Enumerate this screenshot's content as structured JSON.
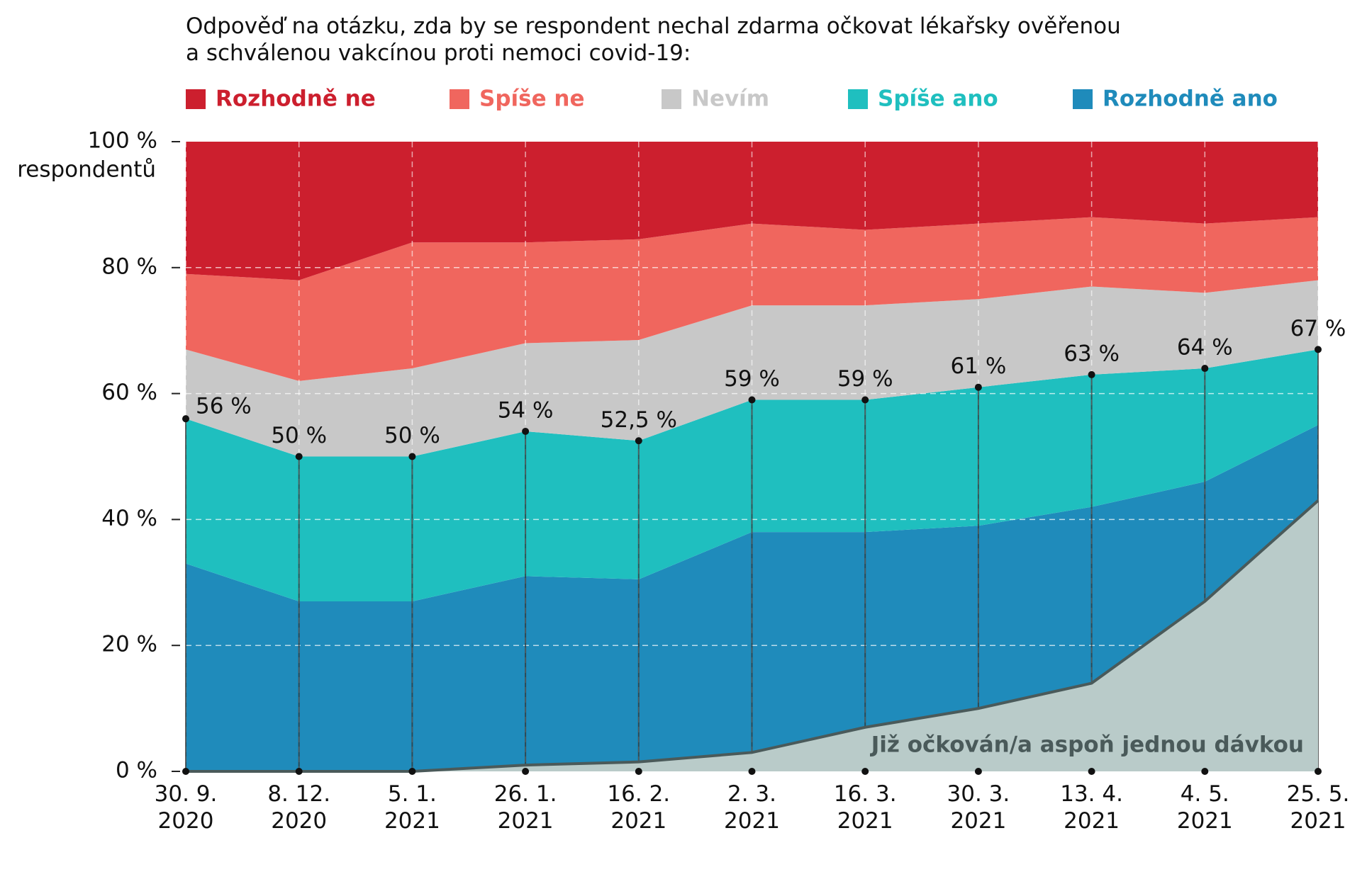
{
  "chart_data": {
    "type": "stacked_area",
    "title": "Odpověď na otázku, zda by se respondent nechal zdarma očkovat lékařsky ověřenou\na schválenou vakcínou proti nemoci covid-19:",
    "y_label": "respondentů",
    "categories": [
      "30. 9.\n2020",
      "8. 12.\n2020",
      "5. 1.\n2021",
      "26. 1.\n2021",
      "16. 2.\n2021",
      "2. 3.\n2021",
      "16. 3.\n2021",
      "30. 3.\n2021",
      "13. 4.\n2021",
      "4. 5.\n2021",
      "25. 5.\n2021"
    ],
    "series": [
      {
        "name": "Rozhodně ano",
        "color": "#1f8bbb",
        "values": [
          33,
          27,
          27,
          31,
          30.5,
          38,
          38,
          39,
          42,
          46,
          55
        ]
      },
      {
        "name": "Spíše ano",
        "color": "#1fbfbf",
        "values": [
          23,
          23,
          23,
          23,
          22,
          21,
          21,
          22,
          21,
          18,
          12
        ]
      },
      {
        "name": "Nevím",
        "color": "#c8c8c8",
        "values": [
          11,
          12,
          14,
          14,
          16,
          15,
          15,
          14,
          14,
          12,
          11
        ]
      },
      {
        "name": "Spíše ne",
        "color": "#f0665e",
        "values": [
          12,
          16,
          20,
          16,
          16,
          13,
          12,
          12,
          11,
          11,
          10
        ]
      },
      {
        "name": "Rozhodně ne",
        "color": "#cc1f2e",
        "values": [
          21,
          22,
          16,
          16,
          15.5,
          13,
          14,
          13,
          12,
          13,
          12
        ]
      }
    ],
    "ano_total": {
      "values": [
        56,
        50,
        50,
        54,
        52.5,
        59,
        59,
        61,
        63,
        64,
        67
      ],
      "value_labels": [
        "56 %",
        "50 %",
        "50 %",
        "54 %",
        "52,5 %",
        "59 %",
        "59 %",
        "61 %",
        "63 %",
        "64 %",
        "67 %"
      ]
    },
    "vaccinated": {
      "name": "Již očkován/a aspoň jednou dávkou",
      "color": "#b9cbc9",
      "line_color": "#4a5a5a",
      "values": [
        0,
        0,
        0,
        1,
        1.5,
        3,
        7,
        10,
        14,
        27,
        43
      ]
    },
    "ylim": [
      0,
      100
    ],
    "yticks": [
      {
        "value": 0,
        "label": "0 %"
      },
      {
        "value": 20,
        "label": "20 %"
      },
      {
        "value": 40,
        "label": "40 %"
      },
      {
        "value": 60,
        "label": "60 %"
      },
      {
        "value": 80,
        "label": "80 %"
      },
      {
        "value": 100,
        "label": "100 %"
      }
    ],
    "grid": true
  }
}
